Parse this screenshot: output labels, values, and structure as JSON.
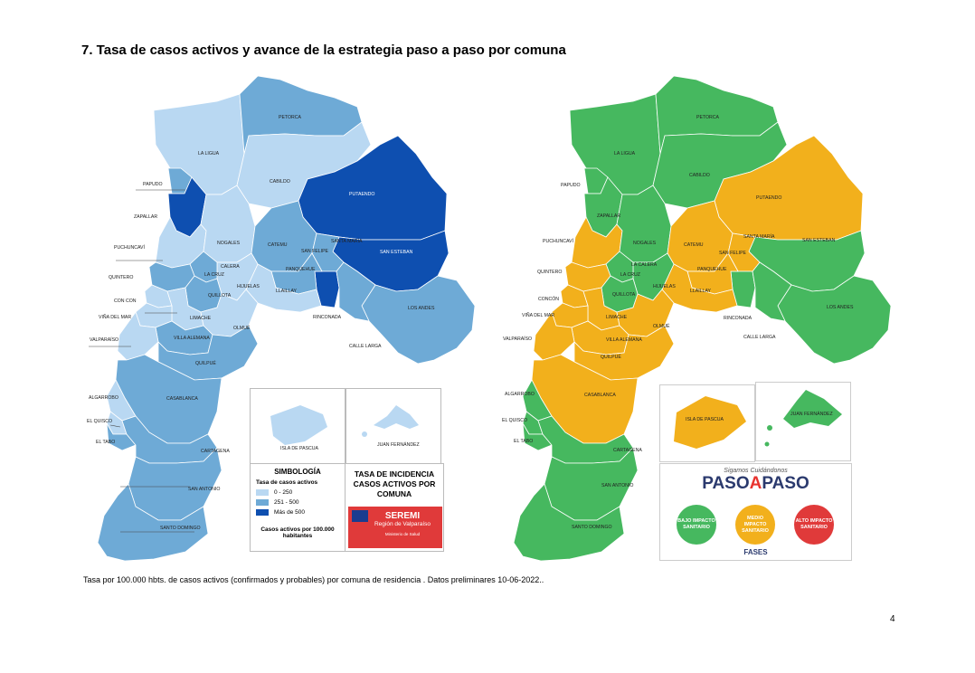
{
  "title": "7. Tasa de casos activos y avance de la estrategia paso a paso por comuna",
  "footnote": "Tasa por 100.000 hbts. de casos activos (confirmados y probables) por comuna de residencia . Datos preliminares 10-06-2022..",
  "page_number": "4",
  "colors": {
    "rate_0_250": "#b9d8f2",
    "rate_251_500": "#6eaad6",
    "rate_500_plus": "#0e4fb0",
    "fase_bajo": "#46b85f",
    "fase_medio": "#f2b01c",
    "fase_alto": "#e03a3a"
  },
  "left_map": {
    "labels": {
      "petorca": "PETORCA",
      "la_ligua": "LA LIGUA",
      "papudo": "PAPUDO",
      "cabildo": "CABILDO",
      "zapallar": "ZAPALLAR",
      "putaendo": "PUTAENDO",
      "puchuncavi": "PUCHUNCAVÍ",
      "nogales": "NOGALES",
      "catemu": "CATEMU",
      "santa_maria": "SANTA MARÍA",
      "san_felipe": "SAN FELIPE",
      "san_esteban": "SAN ESTEBAN",
      "la_cruz": "LA CRUZ",
      "calera": "CALERA",
      "quintero": "QUINTERO",
      "panquehue": "PANQUEHUE",
      "quillota": "QUILLOTA",
      "hijuelas": "HIJUELAS",
      "llaillay": "LLAILLAY",
      "con_con": "CON CON",
      "los_andes": "LOS ANDES",
      "vina": "VIÑA DEL MAR",
      "limache": "LIMACHE",
      "olmue": "OLMUÉ",
      "rinconada": "RINCONADA",
      "valparaiso": "VALPARAÍSO",
      "villa_alemana": "VILLA ALEMANA",
      "calle_larga": "CALLE LARGA",
      "quilpue": "QUILPUÉ",
      "algarrobo": "ALGARROBO",
      "casablanca": "CASABLANCA",
      "el_quisco": "EL QUISCO",
      "el_tabo": "EL TABO",
      "cartagena": "CARTAGENA",
      "san_antonio": "SAN ANTONIO",
      "santo_domingo": "SANTO DOMINGO",
      "isla_pascua": "ISLA DE PASCUA",
      "juan_fernandez": "JUAN FERNÁNDEZ"
    },
    "legend": {
      "title": "SIMBOLOGÍA",
      "subtitle": "Tasa de casos activos",
      "items": [
        "0 - 250",
        "251 - 500",
        "Más de 500"
      ],
      "footer": "Casos activos por 100.000 habitantes"
    },
    "incidence_title": "TASA DE INCIDENCIA CASOS ACTIVOS POR COMUNA",
    "seremi": {
      "title": "SEREMI",
      "region": "Región de Valparaíso",
      "ministry": "Ministerio de Salud"
    }
  },
  "right_map": {
    "labels": {
      "petorca": "PETORCA",
      "la_ligua": "LA LIGUA",
      "papudo": "PAPUDO",
      "cabildo": "CABILDO",
      "zapallar": "ZAPALLAR",
      "putaendo": "PUTAENDO",
      "puchuncavi": "PUCHUNCAVÍ",
      "nogales": "NOGALES",
      "catemu": "CATEMU",
      "santa_maria": "SANTA MARÍA",
      "san_esteban": "SAN ESTEBAN",
      "san_felipe": "SAN FELIPE",
      "quintero": "QUINTERO",
      "la_calera": "LA CALERA",
      "la_cruz": "LA CRUZ",
      "panquehue": "PANQUEHUE",
      "quillota": "QUILLOTA",
      "hijuelas": "HIJUELAS",
      "llaillay": "LLAILLAY",
      "concon": "CONCÓN",
      "los_andes": "LOS ANDES",
      "vina": "VIÑA DEL MAR",
      "limache": "LIMACHE",
      "olmue": "OLMUÉ",
      "rinconada": "RINCONADA",
      "valparaiso": "VALPARAÍSO",
      "villa_alemana": "VILLA ALEMANA",
      "calle_larga": "CALLE LARGA",
      "quilpue": "QUILPUÉ",
      "algarrobo": "ALGARROBO",
      "casablanca": "CASABLANCA",
      "el_quisco": "EL QUISCO",
      "el_tabo": "EL TABO",
      "cartagena": "CARTAGENA",
      "san_antonio": "SAN ANTONIO",
      "santo_domingo": "SANTO DOMINGO",
      "isla_pascua": "ISLA DE PASCUA",
      "juan_fernandez": "JUAN FERNÁNDEZ"
    },
    "paso_a_paso": {
      "slogan": "Sigamos Cuidándonos",
      "logo_left": "PASO",
      "logo_mid": "A",
      "logo_right": "PASO",
      "bajo": "BAJO IMPACTO SANITARIO",
      "medio": "MEDIO IMPACTO SANITARIO",
      "alto": "ALTO IMPACTO SANITARIO",
      "fases": "FASES"
    }
  }
}
